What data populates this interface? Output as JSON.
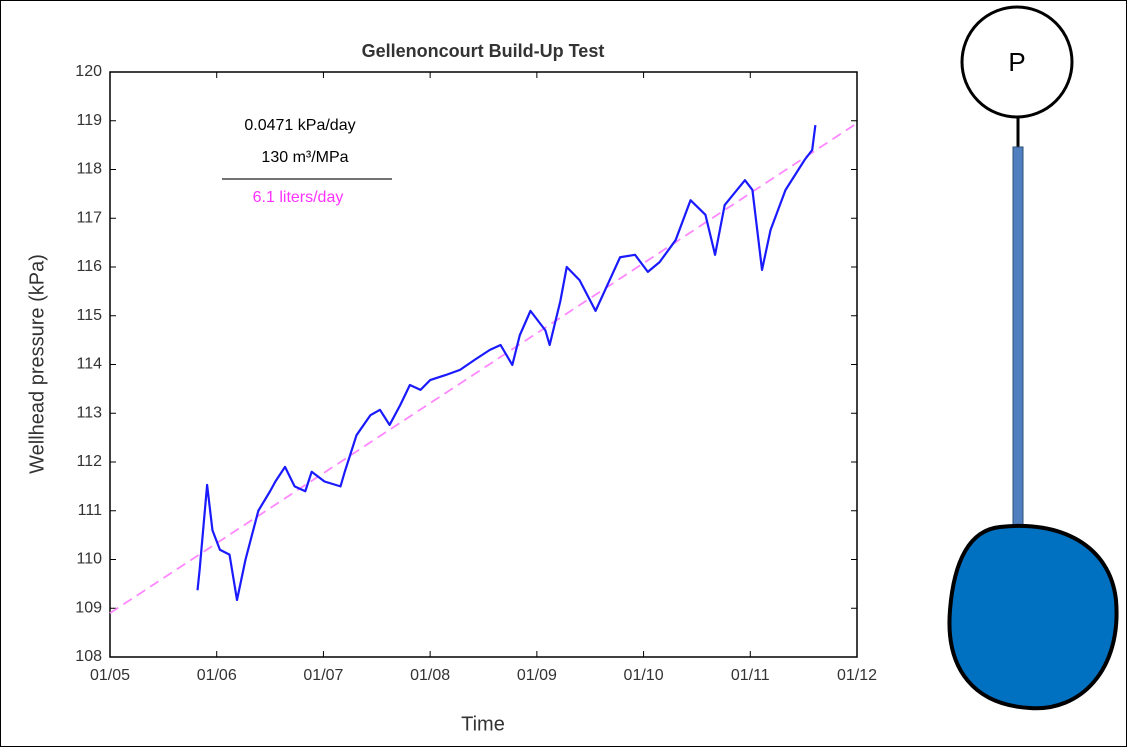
{
  "chart_data": {
    "type": "line",
    "title": "Gellenoncourt Build-Up Test",
    "xlabel": "Time",
    "ylabel": "Wellhead pressure (kPa)",
    "annotations": [
      {
        "text": "0.0471 kPa/day",
        "color": "#000000"
      },
      {
        "text": "130 m³/MPa",
        "color": "#000000"
      },
      {
        "text": "6.1 liters/day",
        "color": "#ff33ff"
      }
    ],
    "xlim": [
      5,
      12
    ],
    "xticks": [
      {
        "value": 5,
        "label": "01/05"
      },
      {
        "value": 6,
        "label": "01/06"
      },
      {
        "value": 7,
        "label": "01/07"
      },
      {
        "value": 8,
        "label": "01/08"
      },
      {
        "value": 9,
        "label": "01/09"
      },
      {
        "value": 10,
        "label": "01/10"
      },
      {
        "value": 11,
        "label": "01/11"
      },
      {
        "value": 12,
        "label": "01/12"
      }
    ],
    "ylim": [
      108,
      120
    ],
    "yticks": [
      108,
      109,
      110,
      111,
      112,
      113,
      114,
      115,
      116,
      117,
      118,
      119,
      120
    ],
    "series": [
      {
        "color": "#1a1aff",
        "style": "solid",
        "x": [
          5.82,
          5.84,
          5.91,
          5.96,
          6.03,
          6.12,
          6.19,
          6.27,
          6.39,
          6.5,
          6.55,
          6.64,
          6.73,
          6.83,
          6.89,
          7.01,
          7.16,
          7.2,
          7.31,
          7.44,
          7.53,
          7.62,
          7.72,
          7.81,
          7.91,
          8.0,
          8.14,
          8.28,
          8.42,
          8.56,
          8.66,
          8.77,
          8.84,
          8.94,
          9.08,
          9.12,
          9.22,
          9.28,
          9.4,
          9.55,
          9.64,
          9.78,
          9.92,
          10.04,
          10.15,
          10.3,
          10.44,
          10.58,
          10.67,
          10.76,
          10.95,
          11.02,
          11.11,
          11.19,
          11.33,
          11.42,
          11.51,
          11.58,
          11.61
        ],
        "values": [
          109.37,
          109.79,
          111.53,
          110.6,
          110.2,
          110.1,
          109.17,
          110.0,
          111.0,
          111.4,
          111.6,
          111.9,
          111.5,
          111.4,
          111.8,
          111.6,
          111.5,
          111.8,
          112.55,
          112.96,
          113.07,
          112.76,
          113.17,
          113.58,
          113.48,
          113.68,
          113.78,
          113.89,
          114.1,
          114.3,
          114.4,
          113.99,
          114.6,
          115.1,
          114.7,
          114.4,
          115.3,
          116.0,
          115.73,
          115.1,
          115.53,
          116.2,
          116.25,
          115.9,
          116.1,
          116.55,
          117.37,
          117.07,
          116.25,
          117.27,
          117.78,
          117.58,
          115.94,
          116.76,
          117.58,
          117.89,
          118.2,
          118.4,
          118.91
        ]
      },
      {
        "color": "#ff88ff",
        "style": "dashed",
        "x": [
          5,
          12
        ],
        "values": [
          108.9,
          118.95
        ]
      }
    ]
  },
  "diagram": {
    "gauge_label": "P"
  }
}
